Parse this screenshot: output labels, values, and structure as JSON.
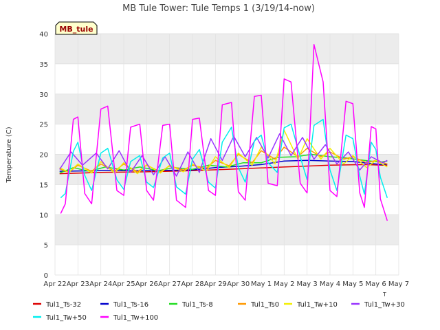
{
  "chart_data": {
    "type": "line",
    "title": "MB Tule Tower: Tule Temps 1 (3/19/14-now)",
    "badge": "MB_tule",
    "xlabel": "",
    "xlabel_fragment": "T",
    "ylabel": "Temperature (C)",
    "ylim": [
      0,
      40
    ],
    "yticks": [
      0,
      5,
      10,
      15,
      20,
      25,
      30,
      35,
      40
    ],
    "xlim": [
      0,
      15
    ],
    "xtick_labels": [
      "Apr 22",
      "Apr 23",
      "Apr 24",
      "Apr 25",
      "Apr 26",
      "Apr 27",
      "Apr 28",
      "Apr 29",
      "Apr 30",
      "May 1",
      "May 2",
      "May 3",
      "May 4",
      "May 5",
      "May 6",
      "May 7"
    ],
    "background_bands": "alternating light gray / white per 5 C",
    "series": [
      {
        "name": "Tul1_Ts-32",
        "color": "#dd0000",
        "x": [
          0.2,
          2,
          4,
          6,
          8,
          10,
          12,
          13.5,
          14.3,
          14.5
        ],
        "y": [
          16.8,
          17.0,
          17.1,
          17.3,
          17.6,
          17.9,
          18.2,
          18.3,
          18.2,
          18.2
        ]
      },
      {
        "name": "Tul1_Ts-16",
        "color": "#0000cc",
        "x": [
          0.2,
          2,
          4,
          6,
          7,
          8,
          9,
          10,
          11,
          12,
          13,
          13.5,
          14,
          14.3,
          14.5
        ],
        "y": [
          17.2,
          17.3,
          17.3,
          17.4,
          17.8,
          18.0,
          18.3,
          18.9,
          19.0,
          18.9,
          18.8,
          18.6,
          18.4,
          18.3,
          18.4
        ]
      },
      {
        "name": "Tul1_Ts-8",
        "color": "#22dd22",
        "x": [
          0.2,
          0.8,
          1.5,
          2.2,
          3,
          3.7,
          4.5,
          5.2,
          6,
          6.7,
          7.5,
          8.2,
          9,
          9.7,
          10.5,
          11.2,
          12,
          12.7,
          13.5,
          14.2,
          14.5
        ],
        "y": [
          16.9,
          17.8,
          17.2,
          17.9,
          17.4,
          17.9,
          17.3,
          17.8,
          17.5,
          18.2,
          17.9,
          18.6,
          18.6,
          19.5,
          19.6,
          20.0,
          19.6,
          19.4,
          19.0,
          18.7,
          18.9
        ]
      },
      {
        "name": "Tul1_Ts0",
        "color": "#ff9900",
        "x": [
          0.2,
          0.6,
          1,
          1.6,
          2,
          2.6,
          3,
          3.6,
          4,
          4.6,
          5,
          5.6,
          6,
          6.6,
          7,
          7.6,
          8,
          8.6,
          9,
          9.6,
          10,
          10.6,
          11,
          11.6,
          12,
          12.6,
          13,
          13.6,
          14,
          14.5
        ],
        "y": [
          17.6,
          17.0,
          18.2,
          17.2,
          18.4,
          17.2,
          18.4,
          17.1,
          18.2,
          17.1,
          18.1,
          17.4,
          18.2,
          17.7,
          19.0,
          18.1,
          20.0,
          18.6,
          20.6,
          19.2,
          21.2,
          19.6,
          21.0,
          19.6,
          20.4,
          19.2,
          19.6,
          18.6,
          19.0,
          18.4
        ]
      },
      {
        "name": "Tul1_Tw+10",
        "color": "#f2ee00",
        "x": [
          0.2,
          0.6,
          1,
          1.6,
          2,
          2.6,
          3,
          3.6,
          4,
          4.6,
          5,
          5.6,
          6,
          6.6,
          7,
          7.6,
          8,
          8.6,
          9,
          9.6,
          10,
          10.6,
          11,
          11.6,
          12,
          12.6,
          13,
          13.6,
          14,
          14.5
        ],
        "y": [
          17.8,
          17.0,
          18.4,
          16.9,
          18.8,
          16.9,
          18.6,
          16.8,
          18.3,
          16.9,
          18.2,
          17.1,
          18.4,
          17.2,
          19.6,
          17.8,
          20.2,
          18.2,
          21.2,
          18.4,
          24.0,
          19.2,
          22.6,
          19.2,
          21.0,
          18.4,
          19.8,
          17.8,
          19.0,
          17.9
        ]
      },
      {
        "name": "Tul1_Tw+30",
        "color": "#9933ff",
        "x": [
          0.2,
          0.7,
          1.2,
          1.8,
          2.3,
          2.8,
          3.3,
          3.8,
          4.3,
          4.8,
          5.3,
          5.8,
          6.3,
          6.8,
          7.3,
          7.8,
          8.3,
          8.8,
          9.3,
          9.8,
          10.3,
          10.8,
          11.3,
          11.8,
          12.3,
          12.8,
          13.3,
          13.8,
          14.3,
          14.5
        ],
        "y": [
          17.5,
          20.4,
          18.2,
          20.2,
          17.6,
          20.6,
          17.0,
          19.8,
          16.6,
          19.6,
          16.4,
          20.4,
          17.0,
          22.6,
          19.0,
          23.0,
          19.6,
          22.8,
          19.4,
          23.4,
          19.8,
          22.8,
          19.2,
          21.6,
          18.4,
          20.4,
          17.4,
          19.6,
          18.6,
          19.0
        ]
      },
      {
        "name": "Tul1_Tw+50",
        "color": "#00eeee",
        "x": [
          0.25,
          0.45,
          0.8,
          1,
          1.3,
          1.6,
          2,
          2.3,
          2.7,
          3,
          3.3,
          3.7,
          4,
          4.3,
          4.7,
          5,
          5.3,
          5.7,
          6,
          6.3,
          6.7,
          7,
          7.3,
          7.7,
          8,
          8.3,
          8.7,
          9,
          9.3,
          9.7,
          10,
          10.3,
          10.7,
          11,
          11.3,
          11.7,
          12,
          12.3,
          12.7,
          13,
          13.3,
          13.5,
          13.8,
          14,
          14.2,
          14.5
        ],
        "y": [
          12.8,
          13.5,
          20.5,
          22.0,
          16.5,
          14.0,
          20.2,
          21.0,
          15.8,
          14.2,
          18.8,
          19.8,
          15.4,
          14.5,
          19.4,
          20.2,
          14.6,
          13.4,
          19.2,
          20.8,
          15.4,
          14.4,
          22.0,
          24.5,
          17.8,
          15.4,
          22.2,
          23.2,
          18.6,
          17.0,
          24.4,
          25.0,
          19.6,
          15.8,
          24.8,
          25.8,
          17.4,
          14.0,
          23.2,
          22.6,
          16.4,
          13.4,
          22.0,
          20.8,
          16.2,
          12.8
        ]
      },
      {
        "name": "Tul1_Tw+100",
        "color": "#ff00ff",
        "x": [
          0.25,
          0.45,
          0.8,
          1,
          1.3,
          1.6,
          2,
          2.3,
          2.7,
          3,
          3.3,
          3.7,
          4,
          4.3,
          4.7,
          5,
          5.3,
          5.7,
          6,
          6.3,
          6.7,
          7,
          7.3,
          7.7,
          8,
          8.3,
          8.7,
          9,
          9.3,
          9.7,
          10,
          10.3,
          10.7,
          11,
          11.3,
          11.7,
          12,
          12.3,
          12.7,
          13,
          13.3,
          13.5,
          13.8,
          14,
          14.2,
          14.5
        ],
        "y": [
          10.2,
          11.8,
          25.8,
          26.2,
          13.5,
          11.8,
          27.5,
          28.0,
          14.0,
          13.2,
          24.5,
          25.0,
          14.0,
          12.4,
          24.8,
          25.0,
          12.4,
          11.2,
          25.8,
          26.0,
          14.0,
          13.2,
          28.2,
          28.6,
          13.8,
          12.4,
          29.6,
          29.8,
          15.2,
          14.8,
          32.5,
          32.0,
          15.2,
          13.6,
          38.2,
          32.0,
          14.0,
          13.0,
          28.8,
          28.4,
          13.6,
          11.2,
          24.6,
          24.2,
          12.6,
          9.0
        ]
      }
    ]
  }
}
